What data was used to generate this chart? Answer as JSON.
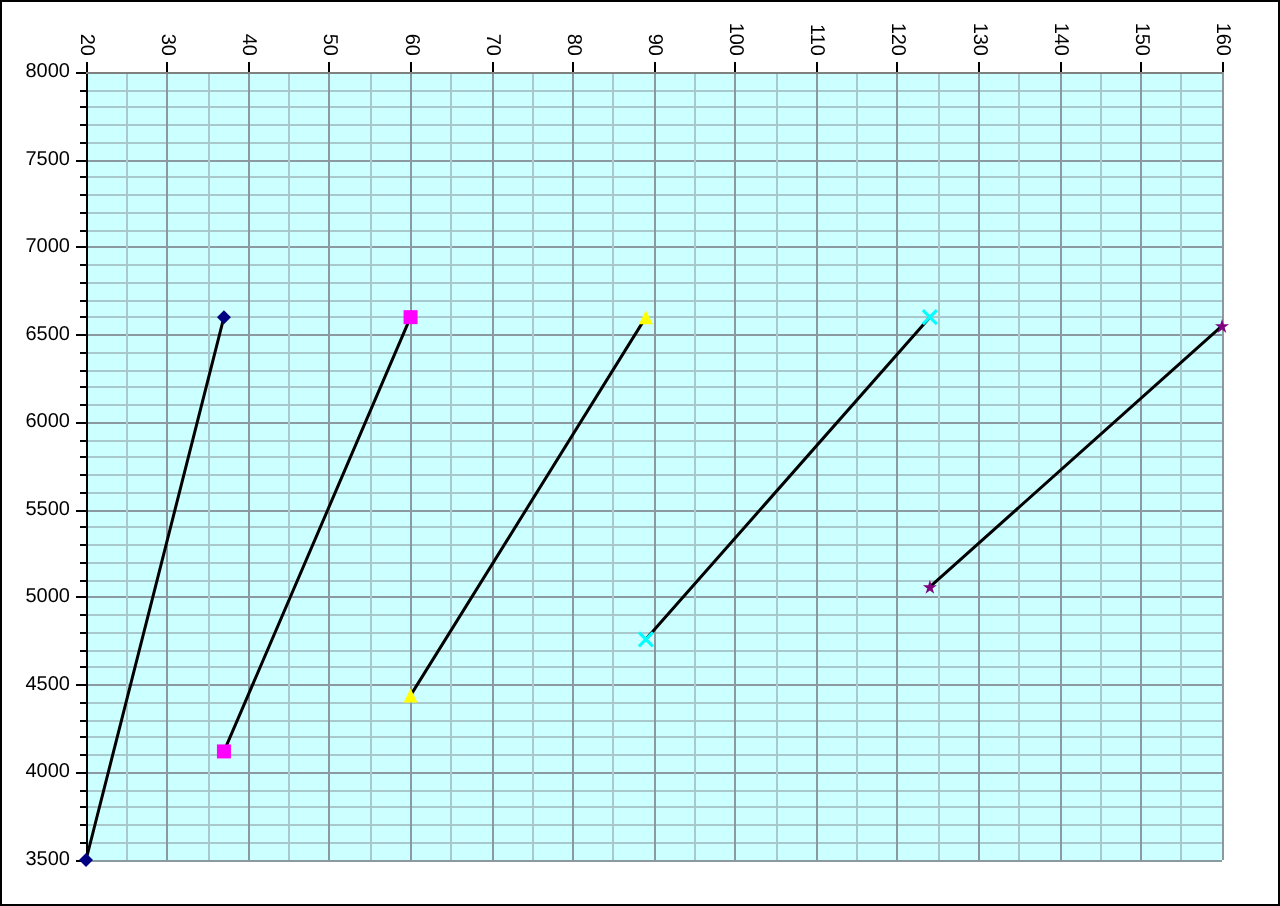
{
  "chart_data": {
    "type": "line",
    "xlim": [
      20,
      160
    ],
    "xticks": [
      20,
      30,
      40,
      50,
      60,
      70,
      80,
      90,
      100,
      110,
      120,
      130,
      140,
      150,
      160
    ],
    "ylim": [
      3500,
      8000
    ],
    "yticks": [
      3500,
      4000,
      4500,
      5000,
      5500,
      6000,
      6500,
      7000,
      7500,
      8000
    ],
    "grid": true,
    "series": [
      {
        "color": "#000000",
        "colors": [
          "#000080",
          "#000080"
        ],
        "marker": "diamond",
        "x": [
          20,
          37
        ],
        "values": [
          3500,
          6600
        ]
      },
      {
        "color": "#000000",
        "colors": [
          "#ff00ff",
          "#ff00ff"
        ],
        "marker": "square",
        "x": [
          37,
          60
        ],
        "values": [
          4120,
          6600
        ]
      },
      {
        "color": "#000000",
        "colors": [
          "#ffff00",
          "#ffff00"
        ],
        "marker": "triangle",
        "x": [
          60,
          89
        ],
        "values": [
          4440,
          6600
        ]
      },
      {
        "color": "#000000",
        "colors": [
          "#00ffff",
          "#00ffff"
        ],
        "marker": "cross",
        "x": [
          89,
          124
        ],
        "values": [
          4760,
          6600
        ]
      },
      {
        "color": "#000000",
        "colors": [
          "#800080",
          "#800080"
        ],
        "marker": "star",
        "x": [
          124,
          160
        ],
        "values": [
          5060,
          6550
        ]
      }
    ]
  }
}
